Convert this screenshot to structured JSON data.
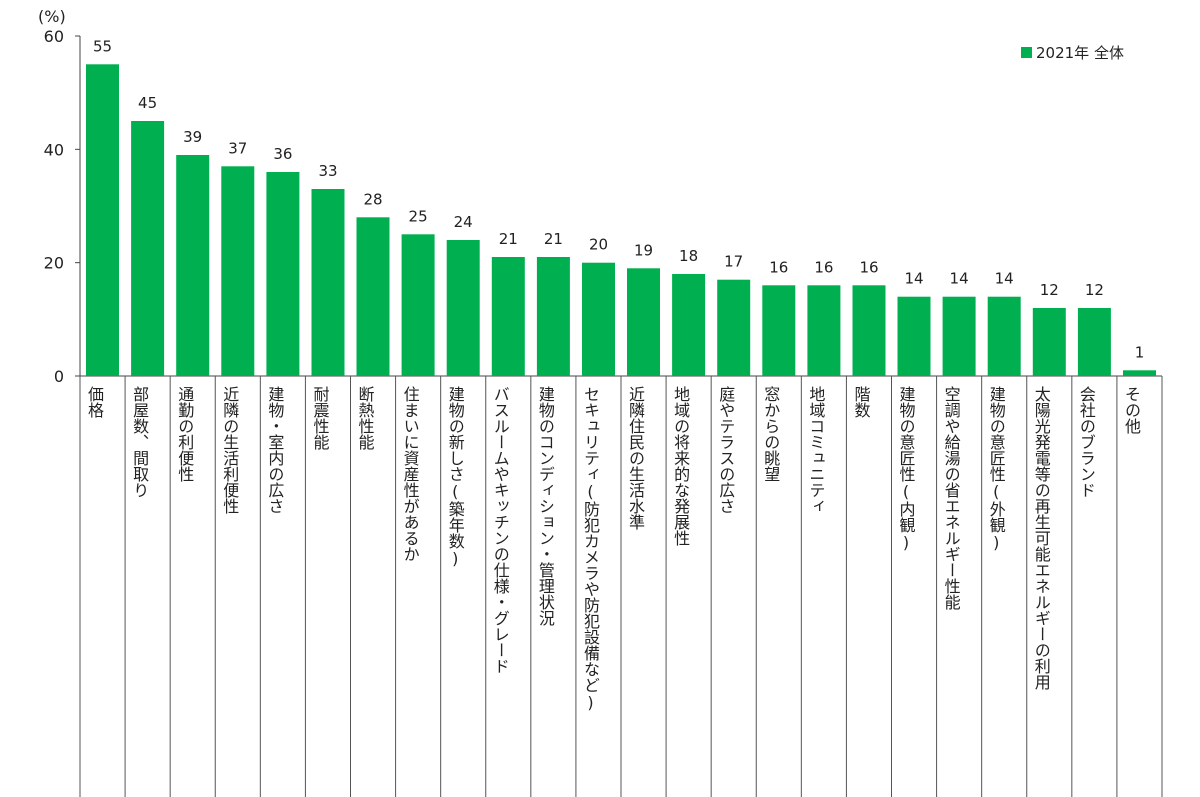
{
  "chart_data": {
    "type": "bar",
    "ylabel": "(%)",
    "ylim": [
      0,
      60
    ],
    "yticks": [
      0,
      20,
      40,
      60
    ],
    "grid": false,
    "legend_position": "top-right",
    "series": [
      {
        "name": "2021年 全体",
        "color": "#00b050",
        "values": [
          55,
          45,
          39,
          37,
          36,
          33,
          28,
          25,
          24,
          21,
          21,
          20,
          19,
          18,
          17,
          16,
          16,
          16,
          14,
          14,
          14,
          12,
          12,
          1
        ]
      }
    ],
    "categories": [
      "価格",
      "部屋数、間取り",
      "通勤の利便性",
      "近隣の生活利便性",
      "建物・室内の広さ",
      "耐震性能",
      "断熱性能",
      "住まいに資産性があるか",
      "建物の新しさ(築年数)",
      "バスルームやキッチンの仕様・グレード",
      "建物のコンディション・管理状況",
      "セキュリティ(防犯カメラや防犯設備など)",
      "近隣住民の生活水準",
      "地域の将来的な発展性",
      "庭やテラスの広さ",
      "窓からの眺望",
      "地域コミュニティ",
      "階数",
      "建物の意匠性(内観)",
      "空調や給湯の省エネルギー性能",
      "建物の意匠性(外観)",
      "太陽光発電等の再生可能エネルギーの利用",
      "会社のブランド",
      "その他"
    ]
  }
}
